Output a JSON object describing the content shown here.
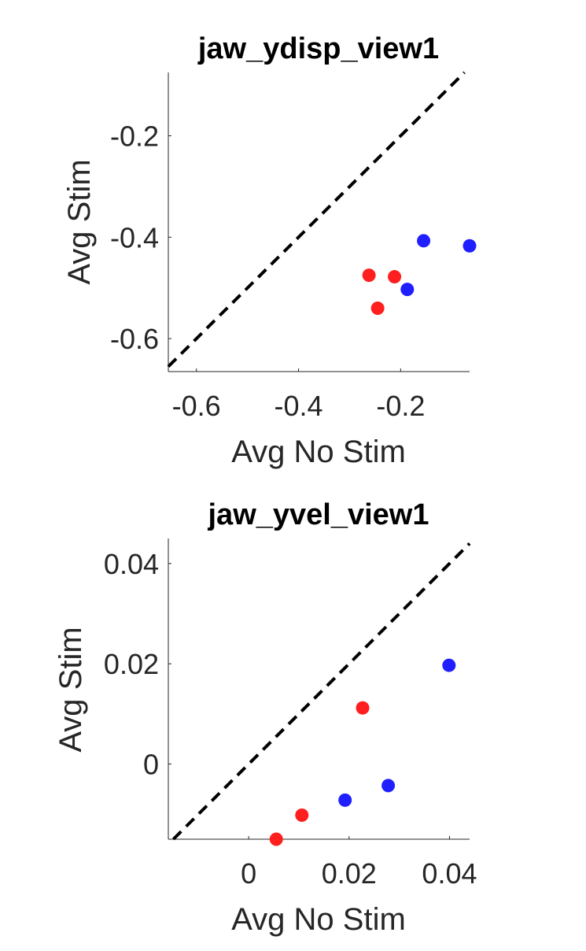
{
  "chart_data": [
    {
      "type": "scatter",
      "title": "jaw_ydisp_view1",
      "xlabel": "Avg No Stim",
      "ylabel": "Avg Stim",
      "xlim": [
        -0.655,
        -0.065
      ],
      "ylim": [
        -0.665,
        -0.075
      ],
      "xticks": [
        -0.6,
        -0.4,
        -0.2
      ],
      "xtick_labels": [
        "-0.6",
        "-0.4",
        "-0.2"
      ],
      "yticks": [
        -0.6,
        -0.4,
        -0.2
      ],
      "ytick_labels": [
        "-0.6",
        "-0.4",
        "-0.2"
      ],
      "identity_line": true,
      "series": [
        {
          "color": "#ff1f1f",
          "x": [
            -0.262,
            -0.212,
            -0.245
          ],
          "y": [
            -0.475,
            -0.478,
            -0.54
          ]
        },
        {
          "color": "#1f1fff",
          "x": [
            -0.155,
            -0.065,
            -0.187
          ],
          "y": [
            -0.407,
            -0.417,
            -0.503
          ]
        }
      ]
    },
    {
      "type": "scatter",
      "title": "jaw_yvel_view1",
      "xlabel": "Avg No Stim",
      "ylabel": "Avg Stim",
      "xlim": [
        -0.016,
        0.044
      ],
      "ylim": [
        -0.015,
        0.045
      ],
      "xticks": [
        0,
        0.02,
        0.04
      ],
      "xtick_labels": [
        "0",
        "0.02",
        "0.04"
      ],
      "yticks": [
        0,
        0.02,
        0.04
      ],
      "ytick_labels": [
        "0",
        "0.02",
        "0.04"
      ],
      "identity_line": true,
      "series": [
        {
          "color": "#ff1f1f",
          "x": [
            0.0227,
            0.0106,
            0.0055
          ],
          "y": [
            0.0112,
            -0.0102,
            -0.015
          ]
        },
        {
          "color": "#1f1fff",
          "x": [
            0.0399,
            0.0278,
            0.0192
          ],
          "y": [
            0.0197,
            -0.0043,
            -0.0072
          ]
        }
      ]
    }
  ]
}
